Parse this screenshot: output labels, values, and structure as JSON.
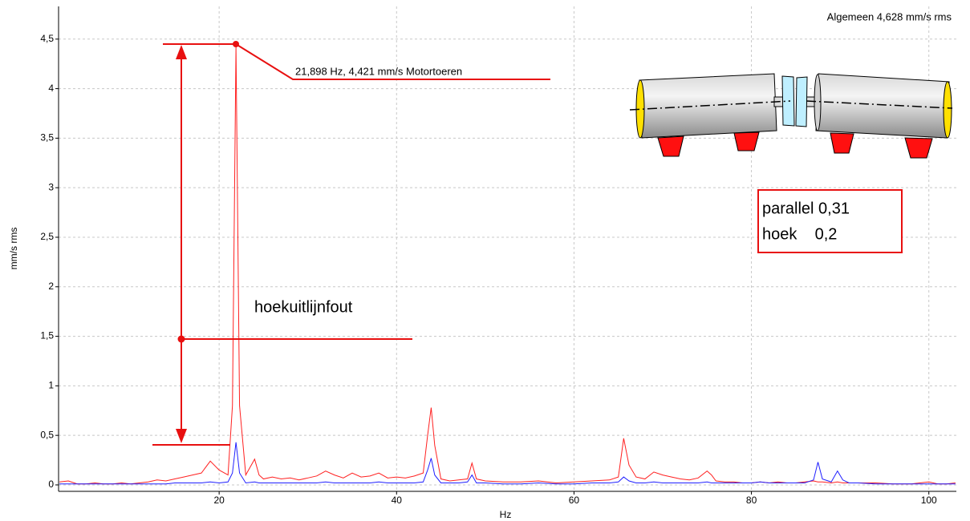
{
  "chart_data": {
    "type": "line",
    "x_label": "Hz",
    "y_label": "mm/s rms",
    "x": [
      2,
      3,
      4,
      5,
      6,
      7,
      8,
      9,
      10,
      11,
      12,
      13,
      14,
      15,
      16,
      17,
      18,
      19,
      20,
      21,
      21.5,
      21.898,
      22.3,
      23,
      24,
      24.5,
      25,
      26,
      27,
      28,
      29,
      30,
      31,
      32,
      33,
      34,
      35,
      36,
      37,
      38,
      39,
      40,
      41,
      42,
      43,
      43.5,
      43.9,
      44.3,
      45,
      46,
      47,
      48,
      48.5,
      49,
      50,
      52,
      54,
      56,
      58,
      60,
      62,
      64,
      65,
      65.6,
      66.2,
      67,
      68,
      69,
      70,
      71,
      72,
      73,
      74,
      75,
      75.5,
      76,
      77,
      78,
      79,
      80,
      81,
      82,
      83,
      84,
      85,
      86,
      87,
      87.5,
      88,
      89,
      89.7,
      90.3,
      91,
      92,
      94,
      96,
      98,
      100,
      101,
      102,
      103
    ],
    "series": [
      {
        "color": "#ff2020",
        "values": [
          0.03,
          0.04,
          0.01,
          0.01,
          0.02,
          0.01,
          0.01,
          0.02,
          0.01,
          0.02,
          0.03,
          0.05,
          0.04,
          0.06,
          0.08,
          0.1,
          0.12,
          0.24,
          0.15,
          0.1,
          0.8,
          4.421,
          0.8,
          0.1,
          0.26,
          0.1,
          0.06,
          0.08,
          0.06,
          0.07,
          0.05,
          0.07,
          0.09,
          0.14,
          0.1,
          0.07,
          0.12,
          0.08,
          0.09,
          0.12,
          0.07,
          0.08,
          0.07,
          0.09,
          0.12,
          0.5,
          0.78,
          0.4,
          0.06,
          0.04,
          0.05,
          0.06,
          0.22,
          0.06,
          0.04,
          0.03,
          0.03,
          0.04,
          0.02,
          0.03,
          0.04,
          0.05,
          0.08,
          0.47,
          0.2,
          0.08,
          0.06,
          0.13,
          0.1,
          0.08,
          0.06,
          0.05,
          0.07,
          0.14,
          0.1,
          0.04,
          0.03,
          0.03,
          0.02,
          0.02,
          0.03,
          0.02,
          0.03,
          0.02,
          0.02,
          0.03,
          0.04,
          0.03,
          0.03,
          0.02,
          0.03,
          0.02,
          0.02,
          0.02,
          0.02,
          0.01,
          0.01,
          0.03,
          0.01,
          0.01,
          0.02
        ]
      },
      {
        "color": "#2020ff",
        "values": [
          0.01,
          0.01,
          0.01,
          0.01,
          0.01,
          0.01,
          0.01,
          0.01,
          0.01,
          0.01,
          0.01,
          0.01,
          0.01,
          0.02,
          0.02,
          0.02,
          0.02,
          0.03,
          0.02,
          0.03,
          0.12,
          0.43,
          0.12,
          0.02,
          0.03,
          0.02,
          0.02,
          0.02,
          0.02,
          0.02,
          0.02,
          0.02,
          0.02,
          0.03,
          0.02,
          0.02,
          0.02,
          0.02,
          0.02,
          0.03,
          0.02,
          0.02,
          0.02,
          0.02,
          0.03,
          0.15,
          0.27,
          0.1,
          0.02,
          0.02,
          0.02,
          0.03,
          0.1,
          0.02,
          0.02,
          0.01,
          0.01,
          0.02,
          0.01,
          0.01,
          0.02,
          0.02,
          0.03,
          0.08,
          0.04,
          0.02,
          0.02,
          0.03,
          0.02,
          0.02,
          0.02,
          0.02,
          0.02,
          0.03,
          0.02,
          0.02,
          0.02,
          0.02,
          0.02,
          0.02,
          0.03,
          0.02,
          0.02,
          0.02,
          0.02,
          0.02,
          0.05,
          0.23,
          0.06,
          0.03,
          0.14,
          0.05,
          0.02,
          0.02,
          0.01,
          0.01,
          0.01,
          0.01,
          0.01,
          0.01,
          0.01
        ]
      }
    ],
    "xlim": [
      1.9,
      103.1
    ],
    "xticks": [
      20,
      40,
      60,
      80,
      100
    ],
    "ylim": [
      -0.065,
      4.83
    ],
    "yticks": [
      0,
      {
        "value": 0.5,
        "label": "0,5"
      },
      1,
      {
        "value": 1.5,
        "label": "1,5"
      },
      2,
      {
        "value": 2.5,
        "label": "2,5"
      },
      3,
      {
        "value": 3.5,
        "label": "3,5"
      },
      4,
      {
        "value": 4.5,
        "label": "4,5"
      }
    ],
    "grid": true,
    "annotations": [
      "Algemeen 4,628 mm/s rms",
      "21,898 Hz, 4,421 mm/s Motortoeren",
      "hoekuitlijnfout",
      "parallel 0,31",
      "hoek    0,2"
    ]
  }
}
